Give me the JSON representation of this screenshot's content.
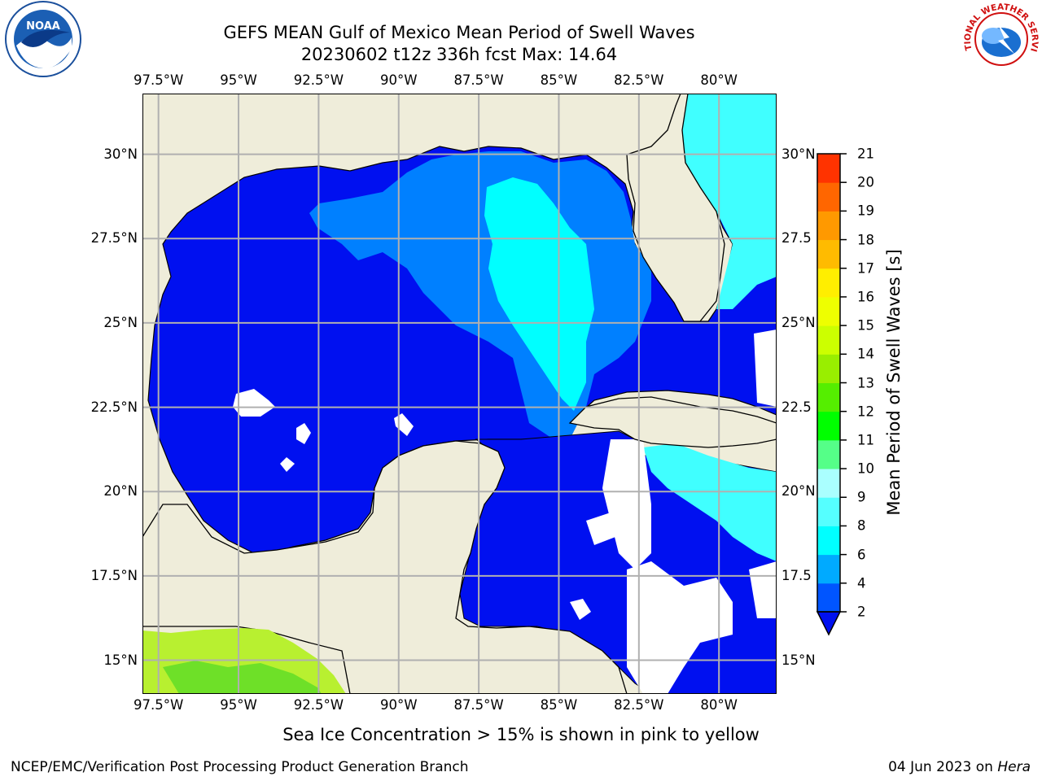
{
  "title": "GEFS MEAN Gulf of Mexico Mean Period of Swell Waves",
  "subtitle": "20230602 t12z 336h fcst   Max: 14.64",
  "map": {
    "lon_ticks": [
      -97.5,
      -95,
      -92.5,
      -90,
      -87.5,
      -85,
      -82.5,
      -80
    ],
    "lon_labels": [
      "97.5°W",
      "95°W",
      "92.5°W",
      "90°W",
      "87.5°W",
      "85°W",
      "82.5°W",
      "80°W"
    ],
    "lat_ticks": [
      30,
      27.5,
      25,
      22.5,
      20,
      17.5,
      15
    ],
    "lat_labels_left": [
      "30°N",
      "27.5°N",
      "25°N",
      "22.5°N",
      "20°N",
      "17.5°N",
      "15°N"
    ],
    "lat_labels_right": [
      "30°N",
      "27.5",
      "25°N",
      "22.5",
      "20°N",
      "17.5",
      "15°N"
    ],
    "extent": {
      "lon_min": -98,
      "lon_max": -78.2,
      "lat_min": 14,
      "lat_max": 31.8
    },
    "colors": {
      "land": "#efedda",
      "ocean_low": "#0010f0",
      "ocean_mid": "#0080ff",
      "ocean_cyan": "#00ffff",
      "ocean_light": "#40ffff",
      "no_data": "#ffffff",
      "pacific_green": "#b8f030",
      "grid": "#b0b0b0"
    }
  },
  "colorbar": {
    "label": "Mean Period of Swell Waves [s]",
    "ticks": [
      "2",
      "4",
      "6",
      "8",
      "9",
      "10",
      "11",
      "12",
      "13",
      "14",
      "15",
      "16",
      "17",
      "18",
      "19",
      "20",
      "21"
    ],
    "colors": [
      "#0055ff",
      "#00aaff",
      "#00ffff",
      "#55ffff",
      "#aaffff",
      "#55ff88",
      "#00ff00",
      "#55ee00",
      "#99ee00",
      "#ccff00",
      "#eeff00",
      "#ffee00",
      "#ffbb00",
      "#ff9900",
      "#ff6600",
      "#ff3300",
      "#ff0000"
    ]
  },
  "footnote": "Sea Ice Concentration > 15% is shown in pink to yellow",
  "credit_left": "NCEP/EMC/Verification Post Processing Product Generation Branch",
  "credit_date": "04 Jun 2023 on ",
  "credit_machine": "Hera",
  "logos": {
    "left": "NOAA",
    "right": "NATIONAL WEATHER SERVICE"
  }
}
